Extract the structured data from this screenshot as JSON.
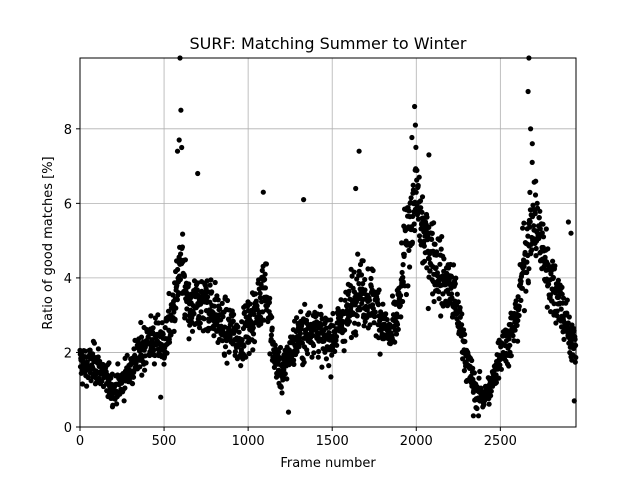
{
  "chart_data": {
    "type": "scatter",
    "title": "SURF: Matching Summer to Winter",
    "xlabel": "Frame number",
    "ylabel": "Ratio of good matches [%]",
    "xlim": [
      0,
      2950
    ],
    "ylim": [
      0,
      9.9
    ],
    "xticks": [
      0,
      500,
      1000,
      1500,
      2000,
      2500
    ],
    "yticks": [
      0,
      2,
      4,
      6,
      8
    ],
    "grid": true,
    "legend": "none",
    "marker_color": "#000000",
    "series": [
      {
        "x": [
          0,
          50,
          100,
          150,
          200,
          250,
          300,
          350,
          400,
          450,
          500,
          550,
          600,
          650,
          700,
          750,
          800,
          850,
          900,
          950,
          1000,
          1050,
          1100,
          1150,
          1200,
          1250,
          1300,
          1350,
          1400,
          1450,
          1500,
          1550,
          1600,
          1650,
          1700,
          1750,
          1800,
          1850,
          1900,
          1950,
          2000,
          2050,
          2100,
          2150,
          2200,
          2250,
          2300,
          2350,
          2400,
          2450,
          2500,
          2550,
          2600,
          2650,
          2700,
          2750,
          2800,
          2850,
          2900,
          2950
        ],
        "y": [
          1.7,
          1.6,
          1.7,
          1.3,
          1.0,
          1.2,
          1.6,
          1.9,
          2.3,
          2.3,
          2.2,
          3.0,
          4.3,
          3.0,
          3.3,
          3.4,
          3.1,
          2.6,
          2.6,
          2.3,
          2.7,
          3.1,
          4.0,
          2.0,
          1.4,
          2.0,
          2.5,
          2.5,
          2.8,
          2.3,
          2.4,
          2.8,
          3.1,
          3.8,
          3.5,
          3.4,
          2.8,
          2.4,
          3.2,
          5.4,
          6.2,
          5.0,
          4.6,
          4.0,
          3.8,
          3.0,
          1.8,
          1.0,
          0.8,
          1.1,
          2.1,
          2.3,
          3.0,
          4.7,
          5.7,
          4.8,
          3.9,
          3.5,
          2.6,
          2.1
        ]
      }
    ],
    "outliers": [
      {
        "x": 595,
        "y": 9.9
      },
      {
        "x": 600,
        "y": 8.5
      },
      {
        "x": 590,
        "y": 7.7
      },
      {
        "x": 605,
        "y": 7.5
      },
      {
        "x": 580,
        "y": 7.4
      },
      {
        "x": 700,
        "y": 6.8
      },
      {
        "x": 1090,
        "y": 6.3
      },
      {
        "x": 1330,
        "y": 6.1
      },
      {
        "x": 1640,
        "y": 6.4
      },
      {
        "x": 1660,
        "y": 7.4
      },
      {
        "x": 1990,
        "y": 8.6
      },
      {
        "x": 1995,
        "y": 8.1
      },
      {
        "x": 2075,
        "y": 7.3
      },
      {
        "x": 2670,
        "y": 9.9
      },
      {
        "x": 2665,
        "y": 9.0
      },
      {
        "x": 2680,
        "y": 8.0
      },
      {
        "x": 2690,
        "y": 7.6
      },
      {
        "x": 2370,
        "y": 0.3
      },
      {
        "x": 2340,
        "y": 0.3
      },
      {
        "x": 1240,
        "y": 0.4
      },
      {
        "x": 2940,
        "y": 0.7
      },
      {
        "x": 2905,
        "y": 5.5
      },
      {
        "x": 2920,
        "y": 5.2
      },
      {
        "x": 480,
        "y": 0.8
      }
    ]
  }
}
